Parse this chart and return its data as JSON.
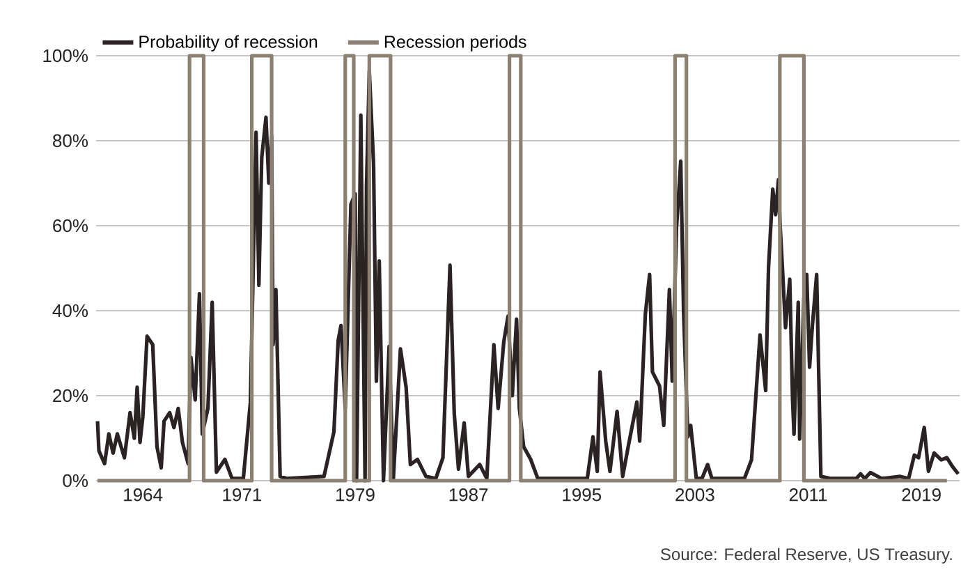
{
  "chart_data": {
    "type": "line",
    "series": [
      {
        "name": "Probability of recession",
        "color": "#2a2223",
        "x": [
          1960.8,
          1960.9,
          1961.3,
          1961.6,
          1961.9,
          1962.2,
          1962.7,
          1963.1,
          1963.4,
          1963.6,
          1963.8,
          1964.0,
          1964.3,
          1964.7,
          1965.0,
          1965.3,
          1965.5,
          1965.9,
          1966.2,
          1966.5,
          1966.8,
          1967.2,
          1967.4,
          1967.7,
          1968.0,
          1968.2,
          1968.6,
          1968.9,
          1969.2,
          1969.8,
          1970.3,
          1971.1,
          1971.6,
          1972.0,
          1972.2,
          1972.4,
          1972.7,
          1972.9,
          1973.1,
          1973.2,
          1973.4,
          1973.7,
          1974.2,
          1976.8,
          1977.5,
          1977.8,
          1978.0,
          1978.3,
          1978.7,
          1979.0,
          1979.1,
          1979.4,
          1979.7,
          1979.8,
          1980.0,
          1980.3,
          1980.5,
          1980.7,
          1981.0,
          1981.4,
          1981.7,
          1982.2,
          1982.6,
          1982.9,
          1983.4,
          1984.0,
          1984.7,
          1985.2,
          1985.7,
          1986.0,
          1986.3,
          1986.7,
          1987.0,
          1987.8,
          1988.3,
          1988.8,
          1989.1,
          1989.5,
          1989.8,
          1990.1,
          1990.4,
          1990.6,
          1990.9,
          1991.4,
          1991.9,
          1993.5,
          1995.4,
          1995.8,
          1996.1,
          1996.3,
          1996.7,
          1997.0,
          1997.5,
          1997.9,
          1998.3,
          1998.9,
          1999.1,
          1999.5,
          1999.8,
          2000.0,
          2000.5,
          2000.8,
          2001.2,
          2001.4,
          2001.7,
          2002.0,
          2002.2,
          2002.5,
          2002.7,
          2003.1,
          2003.5,
          2003.9,
          2004.2,
          2006.5,
          2007.0,
          2007.6,
          2008.0,
          2008.2,
          2008.5,
          2008.7,
          2008.9,
          2009.0,
          2009.2,
          2009.4,
          2009.7,
          2009.9,
          2010.0,
          2010.3,
          2010.4,
          2010.7,
          2010.9,
          2011.1,
          2011.3,
          2011.6,
          2011.9,
          2012.6,
          2014.4,
          2014.7,
          2015.0,
          2015.4,
          2016.2,
          2017.5,
          2018.1,
          2018.5,
          2018.8,
          2019.2,
          2019.5,
          2019.9,
          2020.4,
          2020.8,
          2021.2,
          2021.6
        ],
        "values": [
          14,
          7,
          4,
          11,
          6.5,
          11,
          5.4,
          16,
          10,
          22,
          9,
          15,
          34,
          32,
          8,
          3,
          14,
          16,
          12.5,
          17,
          9,
          4,
          29,
          19,
          44,
          11,
          17,
          42,
          2,
          5,
          0.5,
          0.5,
          18.5,
          82,
          46,
          76,
          85.5,
          70,
          81,
          32,
          45,
          1,
          0.5,
          1,
          11.5,
          33,
          36.5,
          17,
          65,
          67.5,
          0,
          86,
          0,
          69,
          96.4,
          74.6,
          23.4,
          51.7,
          0,
          31.6,
          0.5,
          31,
          22,
          3.8,
          5,
          1,
          0.5,
          5.4,
          50.7,
          15.8,
          2.7,
          13.6,
          1,
          3.8,
          0.5,
          32,
          17,
          32.7,
          38.7,
          20,
          38,
          17,
          8,
          5,
          0.5,
          0.5,
          0.5,
          10.3,
          2.2,
          25.6,
          9.3,
          2.2,
          16.3,
          1,
          8.2,
          18.5,
          9.3,
          39.2,
          48.5,
          25.6,
          22.3,
          13,
          45,
          23.4,
          59.4,
          75.2,
          39.8,
          10.3,
          13,
          0.5,
          0.5,
          3.8,
          0.5,
          0.5,
          4.9,
          34.3,
          21.2,
          50,
          68.6,
          62.6,
          70.8,
          61.5,
          49,
          36,
          47.4,
          19,
          10.9,
          42,
          9.8,
          43,
          48.5,
          26.7,
          36.5,
          48.5,
          1,
          0.5,
          0.5,
          1.6,
          0.5,
          1.9,
          0.5,
          1,
          0.5,
          6,
          5.4,
          12.5,
          2.2,
          6.5,
          4.9,
          5.4,
          3.3,
          1.6
        ]
      },
      {
        "name": "Recession periods",
        "color": "#8c8073",
        "x": [
          1960.8,
          1967.3,
          1967.3,
          1968.3,
          1968.3,
          1971.7,
          1971.7,
          1973.1,
          1973.1,
          1978.3,
          1978.3,
          1978.9,
          1978.9,
          1980.0,
          1980.0,
          1981.5,
          1981.5,
          1989.9,
          1989.9,
          1990.7,
          1990.7,
          2001.6,
          2001.6,
          2002.4,
          2002.4,
          2009.0,
          2009.0,
          2010.7,
          2010.7,
          2020.8
        ],
        "values": [
          0,
          0,
          100,
          100,
          0,
          0,
          100,
          100,
          0,
          0,
          100,
          100,
          0,
          0,
          100,
          100,
          0,
          0,
          100,
          100,
          0,
          0,
          100,
          100,
          0,
          0,
          100,
          100,
          0,
          0
        ]
      }
    ],
    "xlim": [
      1960.7,
      2021.7
    ],
    "xticks": [
      1964,
      1971,
      1979,
      1987,
      1995,
      2003,
      2011,
      2019
    ],
    "ylim": [
      0,
      100
    ],
    "yticks": [
      {
        "value": 0,
        "label": "0%"
      },
      {
        "value": 20,
        "label": "20%"
      },
      {
        "value": 40,
        "label": "40%"
      },
      {
        "value": 60,
        "label": "60%"
      },
      {
        "value": 80,
        "label": "80%"
      },
      {
        "value": 100,
        "label": "100%"
      }
    ],
    "grid": "y",
    "legend": "top left",
    "line_style": "solid",
    "marker": "none",
    "annotations": [
      "Source: Federal Reserve, US Treasury."
    ]
  }
}
